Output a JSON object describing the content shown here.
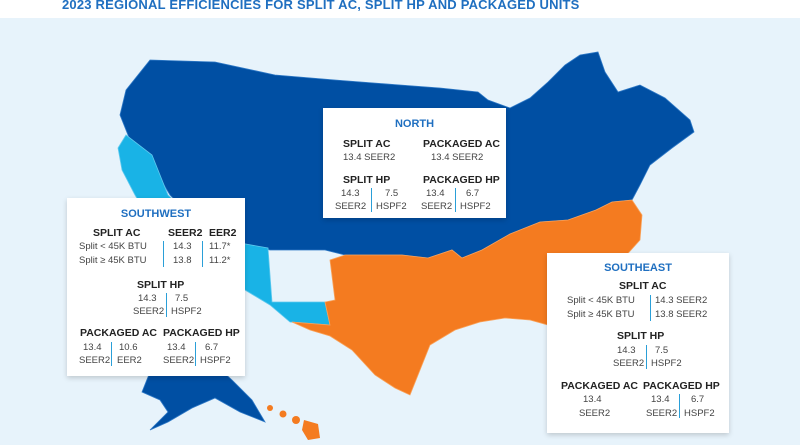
{
  "title": "2023 REGIONAL EFFICIENCIES FOR SPLIT AC, SPLIT HP AND PACKAGED UNITS",
  "colors": {
    "north": "#004fa3",
    "southwest": "#19b3e6",
    "southeast": "#f47b20",
    "background": "#e7f3fb",
    "accent": "#1f6fc0"
  },
  "north": {
    "name": "NORTH",
    "split_ac": {
      "label": "SPLIT AC",
      "value": "13.4 SEER2"
    },
    "packaged_ac": {
      "label": "PACKAGED AC",
      "value": "13.4 SEER2"
    },
    "split_hp": {
      "label": "SPLIT HP",
      "seer_value": "14.3",
      "seer_unit": "SEER2",
      "hspf_value": "7.5",
      "hspf_unit": "HSPF2"
    },
    "packaged_hp": {
      "label": "PACKAGED HP",
      "seer_value": "13.4",
      "seer_unit": "SEER2",
      "hspf_value": "6.7",
      "hspf_unit": "HSPF2"
    }
  },
  "southwest": {
    "name": "SOUTHWEST",
    "split_ac": {
      "label": "SPLIT AC",
      "col_seer": "SEER2",
      "col_eer": "EER2",
      "rows": [
        {
          "size": "Split < 45K BTU",
          "seer": "14.3",
          "eer": "11.7*"
        },
        {
          "size": "Split ≥ 45K BTU",
          "seer": "13.8",
          "eer": "11.2*"
        }
      ]
    },
    "split_hp": {
      "label": "SPLIT HP",
      "seer_value": "14.3",
      "seer_unit": "SEER2",
      "hspf_value": "7.5",
      "hspf_unit": "HSPF2"
    },
    "packaged_ac": {
      "label": "PACKAGED AC",
      "seer_value": "13.4",
      "seer_unit": "SEER2",
      "eer_value": "10.6",
      "eer_unit": "EER2"
    },
    "packaged_hp": {
      "label": "PACKAGED HP",
      "seer_value": "13.4",
      "seer_unit": "SEER2",
      "hspf_value": "6.7",
      "hspf_unit": "HSPF2"
    }
  },
  "southeast": {
    "name": "SOUTHEAST",
    "split_ac": {
      "label": "SPLIT AC",
      "rows": [
        {
          "size": "Split < 45K BTU",
          "value": "14.3 SEER2"
        },
        {
          "size": "Split ≥ 45K BTU",
          "value": "13.8 SEER2"
        }
      ]
    },
    "split_hp": {
      "label": "SPLIT HP",
      "seer_value": "14.3",
      "seer_unit": "SEER2",
      "hspf_value": "7.5",
      "hspf_unit": "HSPF2"
    },
    "packaged_ac": {
      "label": "PACKAGED AC",
      "seer_value": "13.4",
      "seer_unit": "SEER2"
    },
    "packaged_hp": {
      "label": "PACKAGED HP",
      "seer_value": "13.4",
      "seer_unit": "SEER2",
      "hspf_value": "6.7",
      "hspf_unit": "HSPF2"
    }
  }
}
